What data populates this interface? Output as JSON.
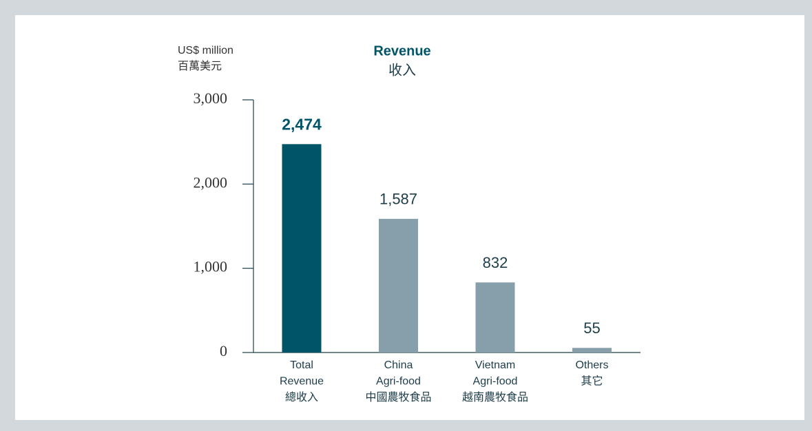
{
  "chart_data": {
    "type": "bar",
    "title": "Revenue",
    "subtitle": "收入",
    "y_label": [
      "US$ million",
      "百萬美元"
    ],
    "categories": [
      [
        "Total",
        "Revenue",
        "總收入"
      ],
      [
        "China",
        "Agri-food",
        "中國農牧食品"
      ],
      [
        "Vietnam",
        "Agri-food",
        "越南農牧食品"
      ],
      [
        "Others",
        "其它"
      ]
    ],
    "values": [
      2474,
      1587,
      832,
      55
    ],
    "value_labels": [
      "2,474",
      "1,587",
      "832",
      "55"
    ],
    "colors": [
      "#005468",
      "#879eab",
      "#879eab",
      "#879eab"
    ],
    "ylim": [
      0,
      3000
    ],
    "yticks": [
      0,
      {
        "value": 1000,
        "label": "1,000"
      },
      {
        "value": 2000,
        "label": "2,000"
      },
      {
        "value": 3000,
        "label": "3,000"
      }
    ],
    "grid": false
  }
}
